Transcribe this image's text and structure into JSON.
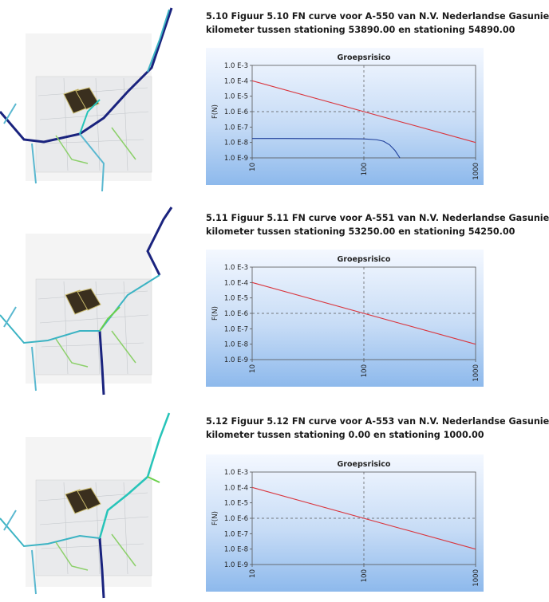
{
  "figures": [
    {
      "caption_line1": "5.10 Figuur 5.10 FN curve voor A-550 van N.V. Nederlandse Gasunie",
      "caption_line2": "kilometer tussen stationing 53890.00 en stationing 54890.00"
    },
    {
      "caption_line1": "5.11 Figuur 5.11 FN curve voor A-551 van N.V. Nederlandse Gasunie",
      "caption_line2": "kilometer tussen stationing 53250.00 en stationing 54250.00"
    },
    {
      "caption_line1": "5.12 Figuur 5.12 FN curve voor A-553 van N.V. Nederlandse Gasunie",
      "caption_line2": "kilometer tussen stationing 0.00 en stationing 1000.00"
    }
  ],
  "chart_data": [
    {
      "type": "line",
      "title": "Groepsrisico",
      "xlabel": "",
      "ylabel": "F(N)",
      "xscale": "log",
      "yscale": "log",
      "xlim": [
        10,
        1000
      ],
      "ylim": [
        1e-09,
        0.001
      ],
      "xticks": [
        "10",
        "100",
        "1000"
      ],
      "yticks": [
        "1.0 E-3",
        "1.0 E-4",
        "1.0 E-5",
        "1.0 E-6",
        "1.0 E-7",
        "1.0 E-8",
        "1.0 E-9"
      ],
      "grid": true,
      "legend": "none",
      "series": [
        {
          "color": "#d9363e",
          "x": [
            10,
            1000
          ],
          "y": [
            0.0001,
            1e-08
          ]
        },
        {
          "color": "#1f3f9a",
          "x": [
            10,
            20,
            40,
            70,
            100,
            130,
            150,
            170,
            190,
            210
          ],
          "y": [
            1.8e-08,
            1.8e-08,
            1.78e-08,
            1.75e-08,
            1.7e-08,
            1.5e-08,
            1.2e-08,
            7e-09,
            3e-09,
            1e-09
          ]
        }
      ]
    },
    {
      "type": "line",
      "title": "Groepsrisico",
      "xlabel": "",
      "ylabel": "F(N)",
      "xscale": "log",
      "yscale": "log",
      "xlim": [
        10,
        1000
      ],
      "ylim": [
        1e-09,
        0.001
      ],
      "xticks": [
        "10",
        "100",
        "1000"
      ],
      "yticks": [
        "1.0 E-3",
        "1.0 E-4",
        "1.0 E-5",
        "1.0 E-6",
        "1.0 E-7",
        "1.0 E-8",
        "1.0 E-9"
      ],
      "grid": true,
      "legend": "none",
      "series": [
        {
          "color": "#d9363e",
          "x": [
            10,
            1000
          ],
          "y": [
            0.0001,
            1e-08
          ]
        }
      ]
    },
    {
      "type": "line",
      "title": "Groepsrisico",
      "xlabel": "",
      "ylabel": "F(N)",
      "xscale": "log",
      "yscale": "log",
      "xlim": [
        10,
        1000
      ],
      "ylim": [
        1e-09,
        0.001
      ],
      "xticks": [
        "10",
        "100",
        "1000"
      ],
      "yticks": [
        "1.0 E-3",
        "1.0 E-4",
        "1.0 E-5",
        "1.0 E-6",
        "1.0 E-7",
        "1.0 E-8",
        "1.0 E-9"
      ],
      "grid": true,
      "legend": "none",
      "series": [
        {
          "color": "#d9363e",
          "x": [
            10,
            1000
          ],
          "y": [
            0.0001,
            1e-08
          ]
        }
      ]
    }
  ]
}
